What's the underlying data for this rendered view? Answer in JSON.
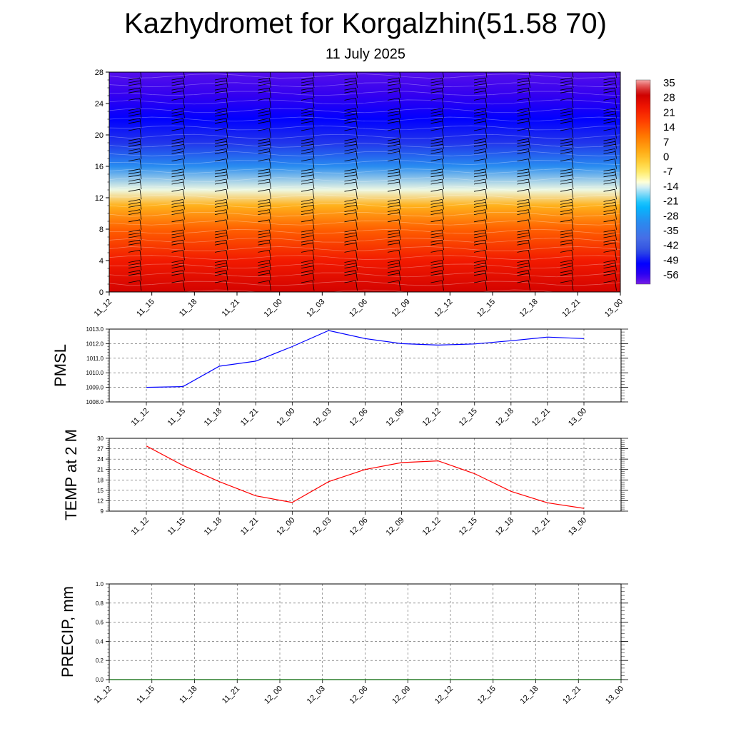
{
  "title": "Kazhydromet for Korgalzhin(51.58 70)",
  "subtitle": "11 July 2025",
  "chart_data": [
    {
      "type": "heatmap",
      "x": [
        "11_12",
        "11_15",
        "11_18",
        "11_21",
        "12_00",
        "12_03",
        "12_06",
        "12_09",
        "12_12",
        "12_15",
        "12_18",
        "12_21",
        "13_00"
      ],
      "y_ticks": [
        0,
        4,
        8,
        12,
        16,
        20,
        24,
        28
      ],
      "ylim": [
        0,
        28
      ],
      "colorbar": {
        "ticks": [
          35,
          28,
          21,
          14,
          7,
          0,
          -7,
          -14,
          -21,
          -28,
          -35,
          -42,
          -49,
          -56
        ],
        "range": [
          -60,
          38
        ]
      },
      "temperature_profile": [
        {
          "level": 0,
          "value": 30
        },
        {
          "level": 4,
          "value": 24
        },
        {
          "level": 8,
          "value": 14
        },
        {
          "level": 11,
          "value": 3
        },
        {
          "level": 13,
          "value": -12
        },
        {
          "level": 16,
          "value": -30
        },
        {
          "level": 19,
          "value": -46
        },
        {
          "level": 22,
          "value": -50
        },
        {
          "level": 25,
          "value": -56
        },
        {
          "level": 28,
          "value": -58
        }
      ],
      "wind_barbs": true
    },
    {
      "type": "line",
      "ylabel": "PMSL",
      "x": [
        "11_12",
        "11_15",
        "11_18",
        "11_21",
        "12_00",
        "12_03",
        "12_06",
        "12_09",
        "12_12",
        "12_15",
        "12_18",
        "12_21",
        "13_00"
      ],
      "values": [
        1009.0,
        1009.05,
        1010.45,
        1010.8,
        1011.8,
        1012.9,
        1012.35,
        1012.0,
        1011.9,
        1011.98,
        1012.2,
        1012.45,
        1012.35
      ],
      "ylim": [
        1008.0,
        1013.0
      ],
      "y_ticks": [
        "1008.0",
        "1009.0",
        "1010.0",
        "1011.0",
        "1012.0",
        "1013.0"
      ],
      "color": "#0000ff",
      "grid": true
    },
    {
      "type": "line",
      "ylabel": "TEMP at 2 M",
      "x": [
        "11_12",
        "11_15",
        "11_18",
        "11_21",
        "12_00",
        "12_03",
        "12_06",
        "12_09",
        "12_12",
        "12_15",
        "12_18",
        "12_21",
        "13_00"
      ],
      "values": [
        27.8,
        22.2,
        17.5,
        13.4,
        11.5,
        17.5,
        21.0,
        23.0,
        23.5,
        19.8,
        14.7,
        11.4,
        9.8
      ],
      "ylim": [
        9,
        30
      ],
      "y_ticks": [
        "9",
        "12",
        "15",
        "18",
        "21",
        "24",
        "27",
        "30"
      ],
      "color": "#ff0000",
      "grid": true
    },
    {
      "type": "line",
      "ylabel": "PRECIP, mm",
      "x": [
        "11_12",
        "11_15",
        "11_18",
        "11_21",
        "12_00",
        "12_03",
        "12_06",
        "12_09",
        "12_12",
        "12_15",
        "12_18",
        "12_21",
        "13_00"
      ],
      "values": [
        0,
        0,
        0,
        0,
        0,
        0,
        0,
        0,
        0,
        0,
        0,
        0,
        0
      ],
      "ylim": [
        0,
        1.0
      ],
      "y_ticks": [
        "0.0",
        "0.2",
        "0.4",
        "0.6",
        "0.8",
        "1.0"
      ],
      "color": "#006400",
      "grid": true
    }
  ]
}
